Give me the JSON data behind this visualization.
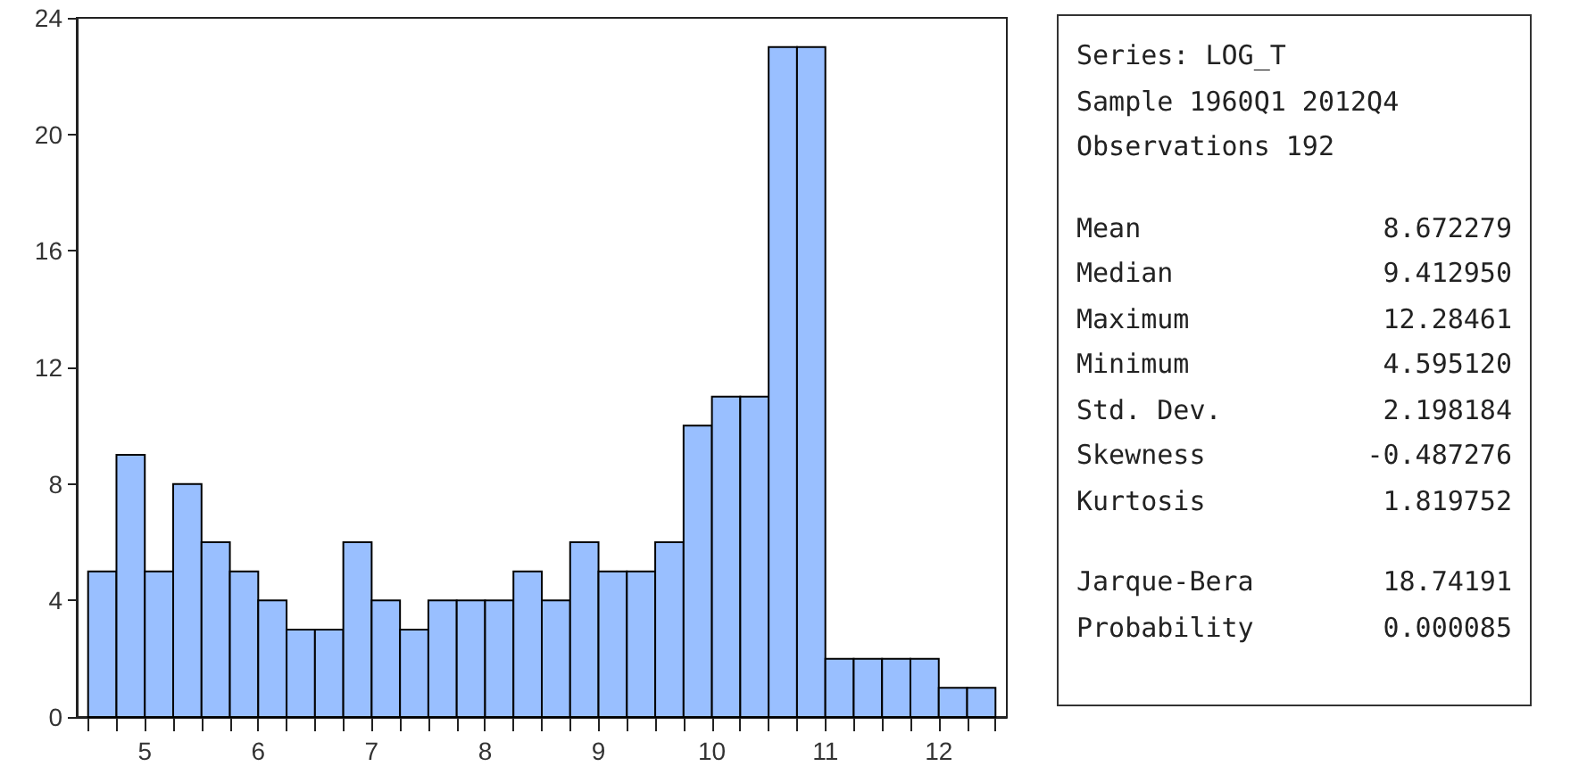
{
  "chart_data": {
    "type": "histogram",
    "bins": [
      4.5,
      4.75,
      5,
      5.25,
      5.5,
      5.75,
      6,
      6.25,
      6.5,
      6.75,
      7,
      7.25,
      7.5,
      7.75,
      8,
      8.25,
      8.5,
      8.75,
      9,
      9.25,
      9.5,
      9.75,
      10,
      10.25,
      10.5,
      10.75,
      11,
      11.25,
      11.5,
      11.75,
      12,
      12.25,
      12.5
    ],
    "values": [
      5,
      9,
      5,
      8,
      6,
      5,
      4,
      3,
      3,
      6,
      4,
      3,
      4,
      4,
      4,
      5,
      4,
      6,
      5,
      5,
      6,
      10,
      11,
      11,
      23,
      23,
      2,
      2,
      2,
      2,
      1,
      1
    ],
    "color": "#99bfff",
    "xlim": [
      4.4,
      12.6
    ],
    "xticks": [
      {
        "value": 4.5,
        "label": null
      },
      {
        "value": 4.75,
        "label": null
      },
      5,
      {
        "value": 5.25,
        "label": null
      },
      {
        "value": 5.5,
        "label": null
      },
      {
        "value": 5.75,
        "label": null
      },
      6,
      {
        "value": 6.25,
        "label": null
      },
      {
        "value": 6.5,
        "label": null
      },
      {
        "value": 6.75,
        "label": null
      },
      7,
      {
        "value": 7.25,
        "label": null
      },
      {
        "value": 7.5,
        "label": null
      },
      {
        "value": 7.75,
        "label": null
      },
      8,
      {
        "value": 8.25,
        "label": null
      },
      {
        "value": 8.5,
        "label": null
      },
      {
        "value": 8.75,
        "label": null
      },
      9,
      {
        "value": 9.25,
        "label": null
      },
      {
        "value": 9.5,
        "label": null
      },
      {
        "value": 9.75,
        "label": null
      },
      10,
      {
        "value": 10.25,
        "label": null
      },
      {
        "value": 10.5,
        "label": null
      },
      {
        "value": 10.75,
        "label": null
      },
      11,
      {
        "value": 11.25,
        "label": null
      },
      {
        "value": 11.5,
        "label": null
      },
      {
        "value": 11.75,
        "label": null
      },
      12,
      {
        "value": 12.25,
        "label": null
      },
      {
        "value": 12.5,
        "label": null
      }
    ],
    "ylim": [
      0,
      24
    ],
    "yticks": [
      0,
      4,
      8,
      12,
      16,
      20,
      24
    ],
    "grid": false,
    "annotations": [
      "Series: LOG_T\nSample 1960Q1 2012Q4\nObservations 192",
      "Mean 8.672279\nMedian 9.412950\nMaximum 12.28461\nMinimum 4.595120\nStd. Dev. 2.198184\nSkewness -0.487276\nKurtosis 1.819752",
      "Jarque-Bera 18.74191\nProbability 0.000085"
    ]
  }
}
